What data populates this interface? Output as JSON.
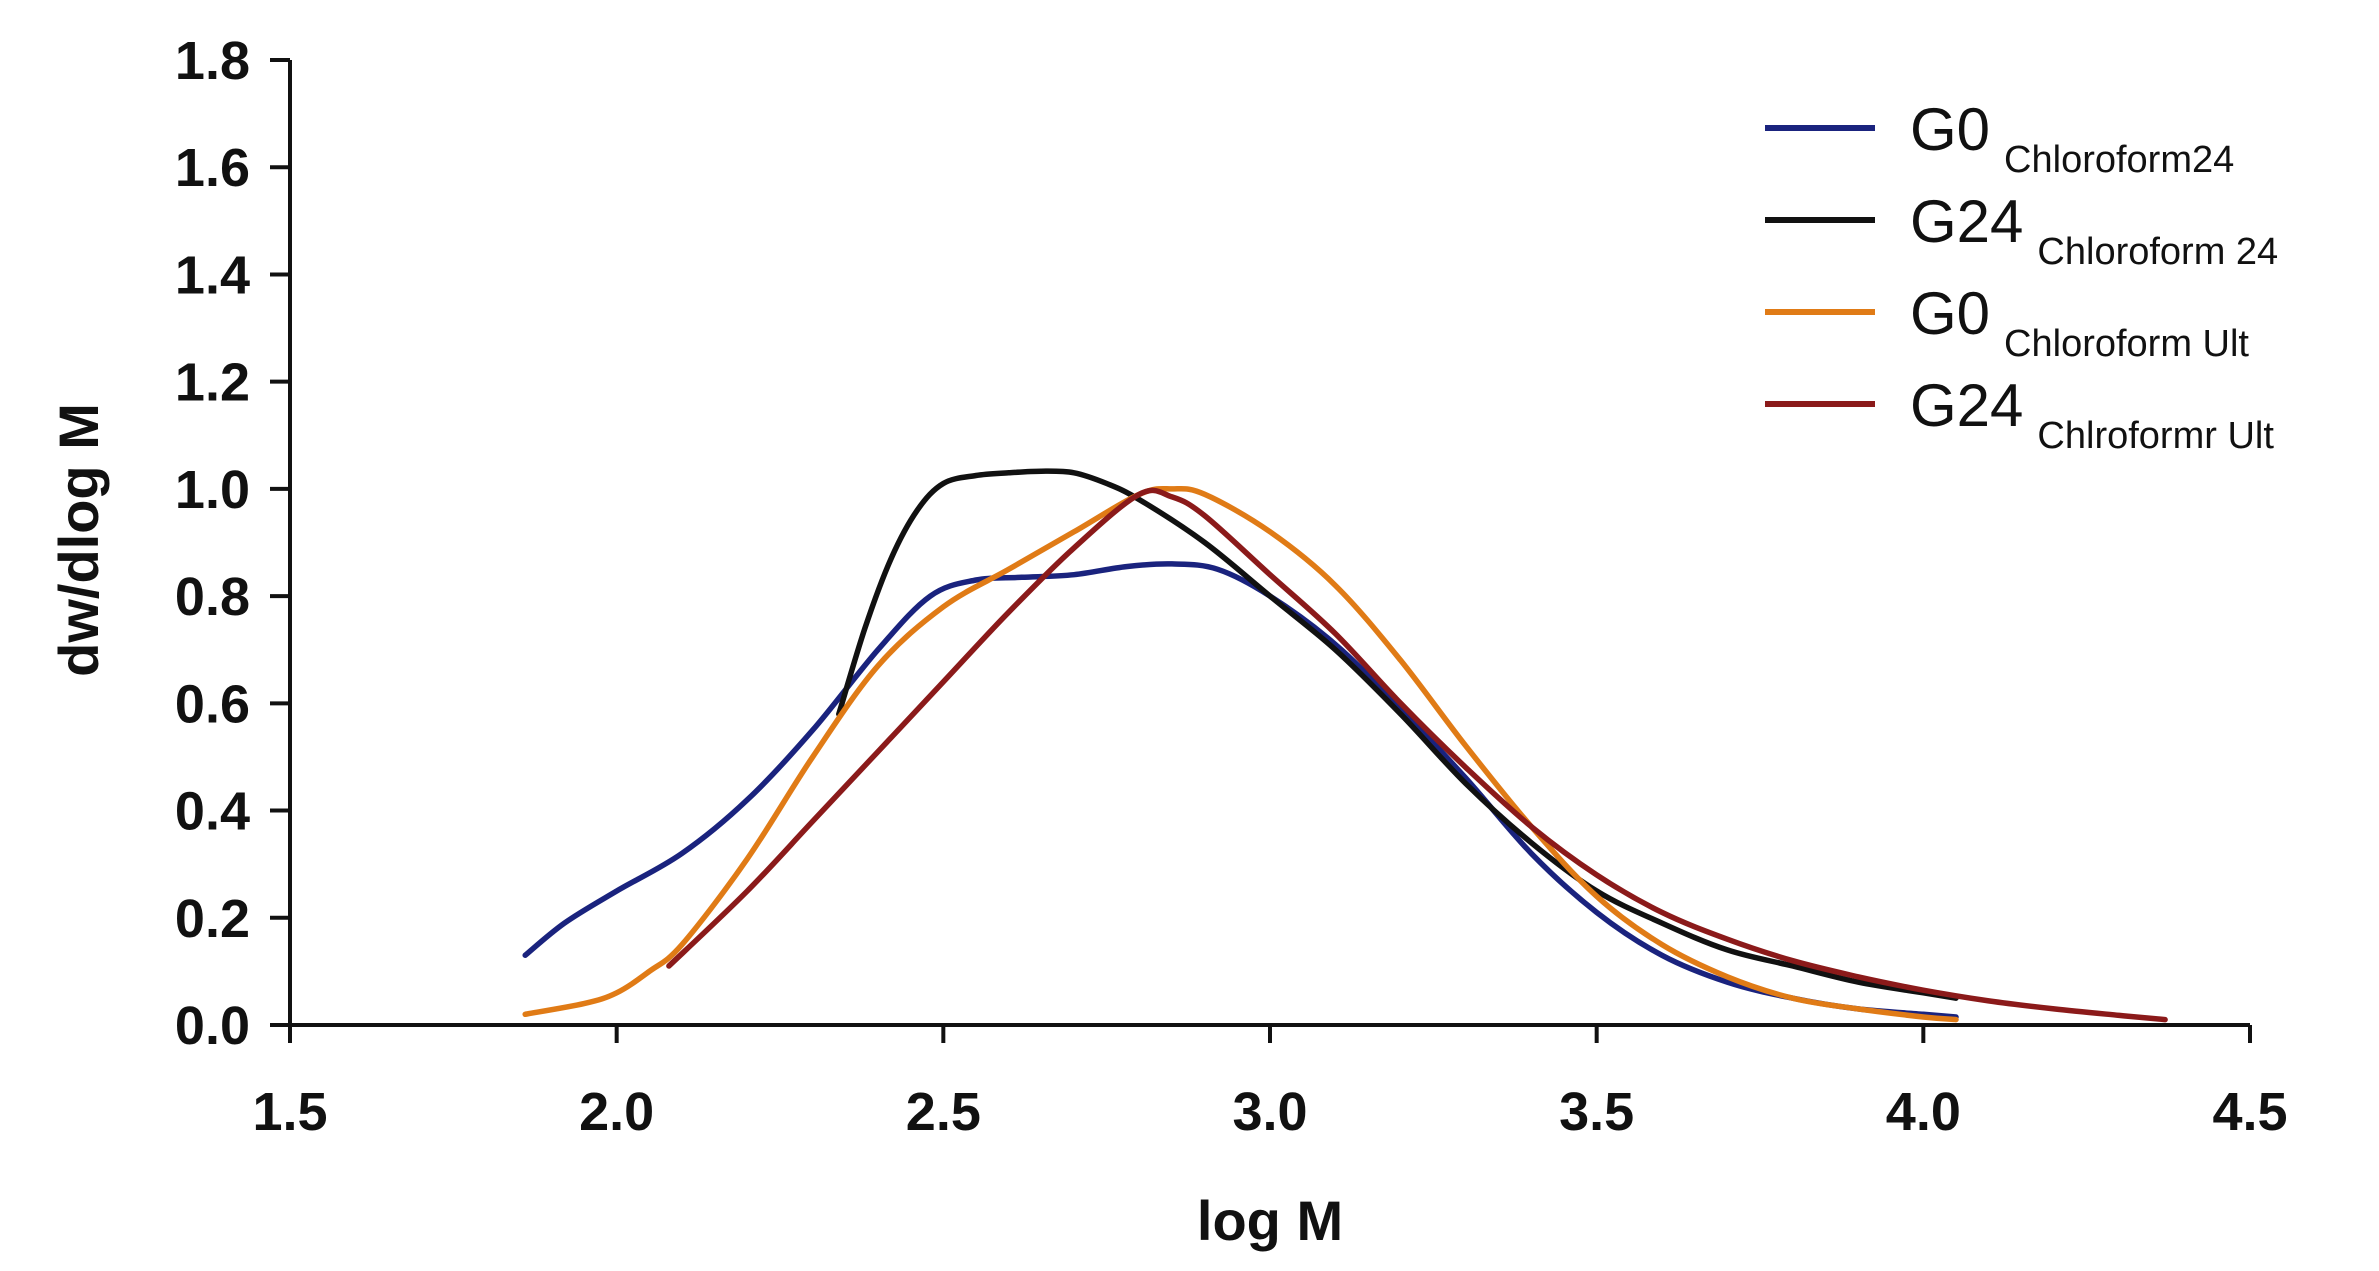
{
  "chart_data": {
    "type": "line",
    "title": "",
    "xlabel": "log M",
    "ylabel": "dw/dlog M",
    "xlim": [
      1.5,
      4.5
    ],
    "ylim": [
      0.0,
      1.8
    ],
    "xticks": [
      1.5,
      2.0,
      2.5,
      3.0,
      3.5,
      4.0,
      4.5
    ],
    "yticks": [
      0.0,
      0.2,
      0.4,
      0.6,
      0.8,
      1.0,
      1.2,
      1.4,
      1.6,
      1.8
    ],
    "xtick_labels": [
      "1.5",
      "2.0",
      "2.5",
      "3.0",
      "3.5",
      "4.0",
      "4.5"
    ],
    "ytick_labels": [
      "0.0",
      "0.2",
      "0.4",
      "0.6",
      "0.8",
      "1.0",
      "1.2",
      "1.4",
      "1.6",
      "1.8"
    ],
    "legend_position": "top-right",
    "series": [
      {
        "name": "G0",
        "subscript": "Chloroform24",
        "color": "#1a237e",
        "x": [
          1.86,
          1.92,
          2.0,
          2.1,
          2.2,
          2.3,
          2.4,
          2.48,
          2.55,
          2.62,
          2.7,
          2.78,
          2.85,
          2.92,
          3.0,
          3.1,
          3.2,
          3.3,
          3.4,
          3.5,
          3.6,
          3.7,
          3.8,
          3.9,
          4.0,
          4.05
        ],
        "y": [
          0.13,
          0.19,
          0.25,
          0.32,
          0.42,
          0.55,
          0.7,
          0.8,
          0.83,
          0.835,
          0.84,
          0.855,
          0.86,
          0.85,
          0.8,
          0.71,
          0.59,
          0.46,
          0.32,
          0.21,
          0.13,
          0.08,
          0.05,
          0.03,
          0.02,
          0.015
        ]
      },
      {
        "name": "G24",
        "subscript": "Chloroform 24",
        "color": "#111111",
        "x": [
          2.34,
          2.38,
          2.42,
          2.46,
          2.5,
          2.55,
          2.6,
          2.65,
          2.7,
          2.75,
          2.8,
          2.9,
          3.0,
          3.1,
          3.2,
          3.3,
          3.4,
          3.5,
          3.6,
          3.7,
          3.8,
          3.9,
          4.0,
          4.05
        ],
        "y": [
          0.58,
          0.74,
          0.87,
          0.96,
          1.01,
          1.025,
          1.03,
          1.033,
          1.03,
          1.01,
          0.98,
          0.9,
          0.8,
          0.7,
          0.58,
          0.45,
          0.34,
          0.25,
          0.19,
          0.14,
          0.11,
          0.08,
          0.06,
          0.05
        ]
      },
      {
        "name": "G0",
        "subscript": "Chloroform Ult",
        "color": "#e07b16",
        "x": [
          1.86,
          1.95,
          2.0,
          2.05,
          2.1,
          2.2,
          2.3,
          2.4,
          2.5,
          2.6,
          2.7,
          2.8,
          2.85,
          2.9,
          3.0,
          3.1,
          3.2,
          3.3,
          3.4,
          3.5,
          3.6,
          3.7,
          3.8,
          3.9,
          4.0,
          4.05
        ],
        "y": [
          0.02,
          0.04,
          0.06,
          0.1,
          0.15,
          0.31,
          0.5,
          0.67,
          0.78,
          0.85,
          0.92,
          0.99,
          1.0,
          0.99,
          0.92,
          0.82,
          0.68,
          0.52,
          0.37,
          0.24,
          0.15,
          0.09,
          0.05,
          0.03,
          0.015,
          0.01
        ]
      },
      {
        "name": "G24",
        "subscript": "Chlroformr Ult",
        "color": "#8b1a1a",
        "x": [
          2.08,
          2.2,
          2.3,
          2.4,
          2.5,
          2.6,
          2.7,
          2.8,
          2.85,
          2.9,
          3.0,
          3.1,
          3.2,
          3.3,
          3.4,
          3.5,
          3.6,
          3.7,
          3.8,
          3.9,
          4.0,
          4.1,
          4.2,
          4.3,
          4.37
        ],
        "y": [
          0.11,
          0.25,
          0.38,
          0.51,
          0.64,
          0.77,
          0.89,
          0.99,
          0.985,
          0.95,
          0.84,
          0.73,
          0.6,
          0.48,
          0.37,
          0.28,
          0.21,
          0.16,
          0.12,
          0.09,
          0.065,
          0.045,
          0.03,
          0.018,
          0.01
        ]
      }
    ]
  }
}
